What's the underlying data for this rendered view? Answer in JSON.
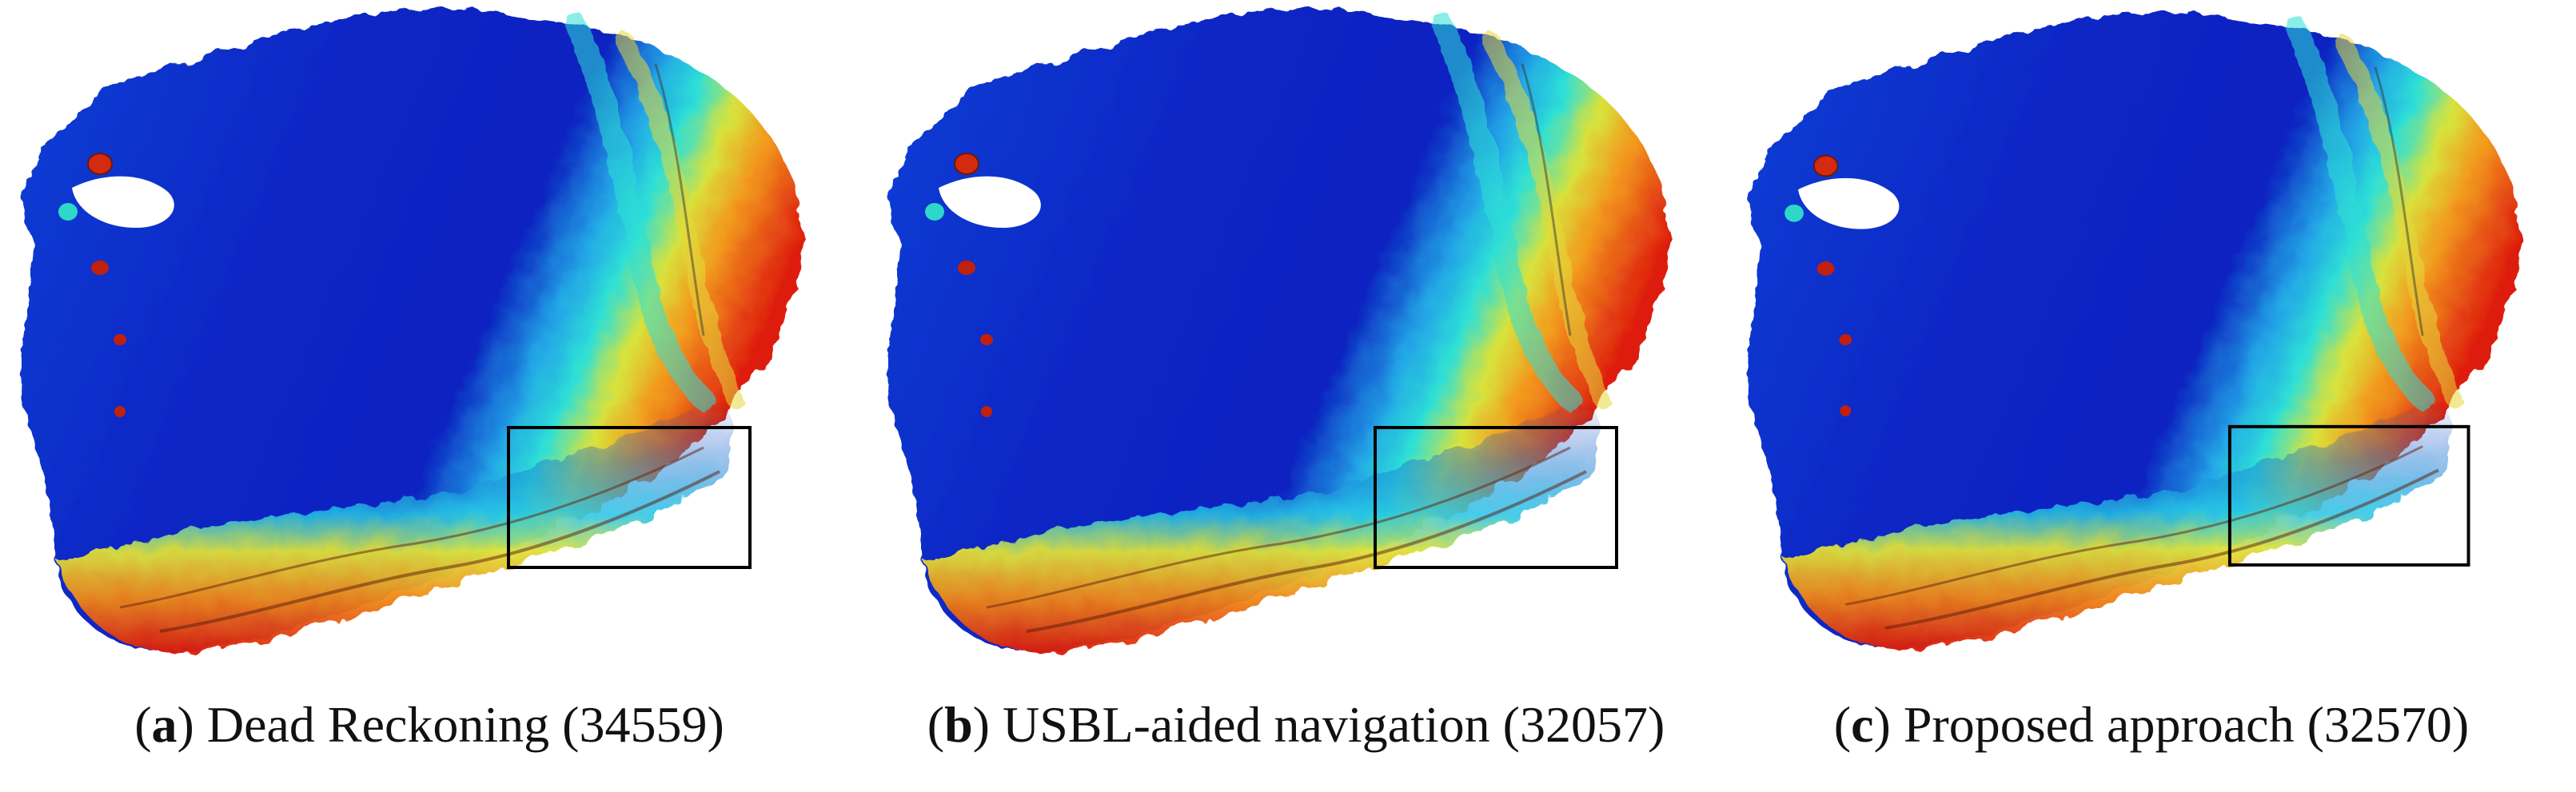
{
  "figure": {
    "panels": [
      {
        "letter": "a",
        "caption": "Dead Reckoning (34559)"
      },
      {
        "letter": "b",
        "caption": "USBL-aided navigation (32057)"
      },
      {
        "letter": "c",
        "caption": "Proposed approach (32570)"
      }
    ],
    "colormap": [
      "#0a1fb8",
      "#1e5ce6",
      "#2ed8e0",
      "#e8e23a",
      "#f08a1a",
      "#e0200c"
    ]
  }
}
